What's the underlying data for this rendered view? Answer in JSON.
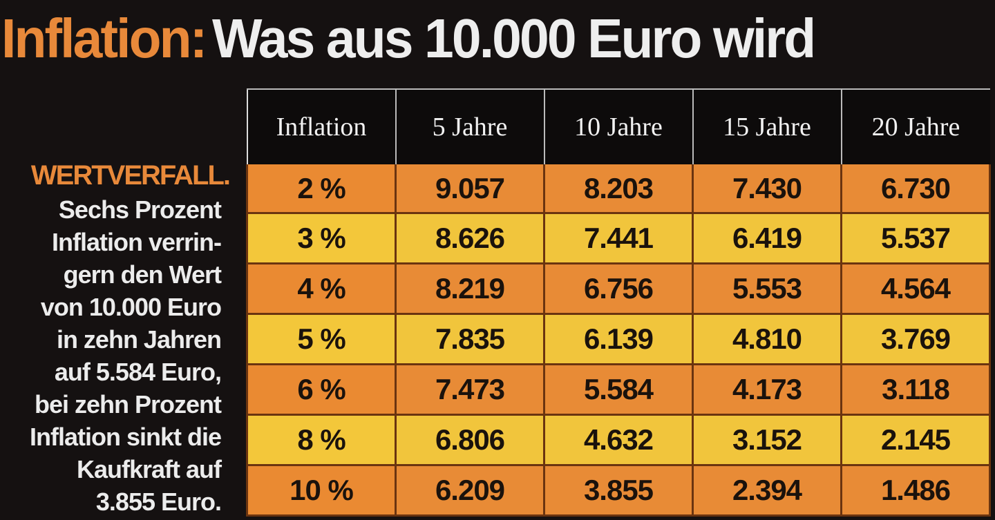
{
  "title": {
    "accent": "Inflation:",
    "main": "Was aus 10.000 Euro wird"
  },
  "sidebar": {
    "heading": "WERTVERFALL.",
    "lines": [
      "Sechs Prozent",
      "Inflation verrin-",
      "gern den Wert",
      "von 10.000 Euro",
      "in zehn Jahren",
      "auf 5.584 Euro,",
      "bei zehn Prozent",
      "Inflation sinkt die",
      "Kaufkraft auf",
      "3.855 Euro."
    ]
  },
  "table": {
    "headers": [
      "Inflation",
      "5 Jahre",
      "10 Jahre",
      "15 Jahre",
      "20 Jahre"
    ],
    "rows": [
      [
        "2 %",
        "9.057",
        "8.203",
        "7.430",
        "6.730"
      ],
      [
        "3 %",
        "8.626",
        "7.441",
        "6.419",
        "5.537"
      ],
      [
        "4 %",
        "8.219",
        "6.756",
        "5.553",
        "4.564"
      ],
      [
        "5 %",
        "7.835",
        "6.139",
        "4.810",
        "3.769"
      ],
      [
        "6 %",
        "7.473",
        "5.584",
        "4.173",
        "3.118"
      ],
      [
        "8 %",
        "6.806",
        "4.632",
        "3.152",
        "2.145"
      ],
      [
        "10 %",
        "6.209",
        "3.855",
        "2.394",
        "1.486"
      ]
    ]
  },
  "colors": {
    "accent": "#e8893a",
    "row_orange": "#e88b36",
    "row_yellow": "#f1c53c",
    "background": "#151111"
  }
}
